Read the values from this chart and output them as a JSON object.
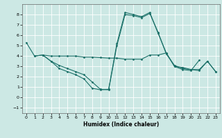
{
  "xlabel": "Humidex (Indice chaleur)",
  "xlim": [
    -0.5,
    23.5
  ],
  "ylim": [
    -1.5,
    9.0
  ],
  "yticks": [
    -1,
    0,
    1,
    2,
    3,
    4,
    5,
    6,
    7,
    8
  ],
  "xticks": [
    0,
    1,
    2,
    3,
    4,
    5,
    6,
    7,
    8,
    9,
    10,
    11,
    12,
    13,
    14,
    15,
    16,
    17,
    18,
    19,
    20,
    21,
    22,
    23
  ],
  "bg_color": "#cce8e4",
  "grid_color": "#ffffff",
  "line_color": "#1a7068",
  "line1_x": [
    0,
    1,
    2,
    3,
    4,
    5,
    6,
    7,
    8,
    9,
    10,
    11,
    12,
    13,
    14,
    15,
    16,
    17,
    18,
    19,
    20,
    21
  ],
  "line1_y": [
    5.3,
    4.0,
    4.1,
    3.5,
    2.8,
    2.5,
    2.2,
    1.8,
    0.9,
    0.75,
    0.8,
    5.2,
    8.2,
    8.0,
    7.8,
    8.2,
    6.2,
    4.3,
    3.0,
    2.7,
    2.6,
    3.6
  ],
  "line2_x": [
    1,
    2,
    3,
    4,
    5,
    6,
    7,
    8,
    9,
    10,
    11,
    12,
    13,
    14,
    15,
    16,
    17,
    18,
    19,
    20,
    21,
    22,
    23
  ],
  "line2_y": [
    4.0,
    4.1,
    4.0,
    4.0,
    4.0,
    4.0,
    3.9,
    3.9,
    3.85,
    3.8,
    3.8,
    3.7,
    3.7,
    3.7,
    4.1,
    4.1,
    4.3,
    3.0,
    2.9,
    2.7,
    2.6,
    3.5,
    2.5
  ],
  "line3_x": [
    2,
    3,
    4,
    5,
    6,
    7,
    8,
    9,
    10,
    11,
    12,
    13,
    14,
    15,
    16,
    17,
    18,
    19,
    20,
    21,
    22,
    23
  ],
  "line3_y": [
    4.1,
    3.5,
    3.1,
    2.8,
    2.5,
    2.2,
    1.5,
    0.8,
    0.75,
    5.0,
    8.0,
    7.9,
    7.7,
    8.1,
    6.3,
    4.2,
    3.1,
    2.8,
    2.7,
    2.7,
    3.5,
    2.5
  ]
}
